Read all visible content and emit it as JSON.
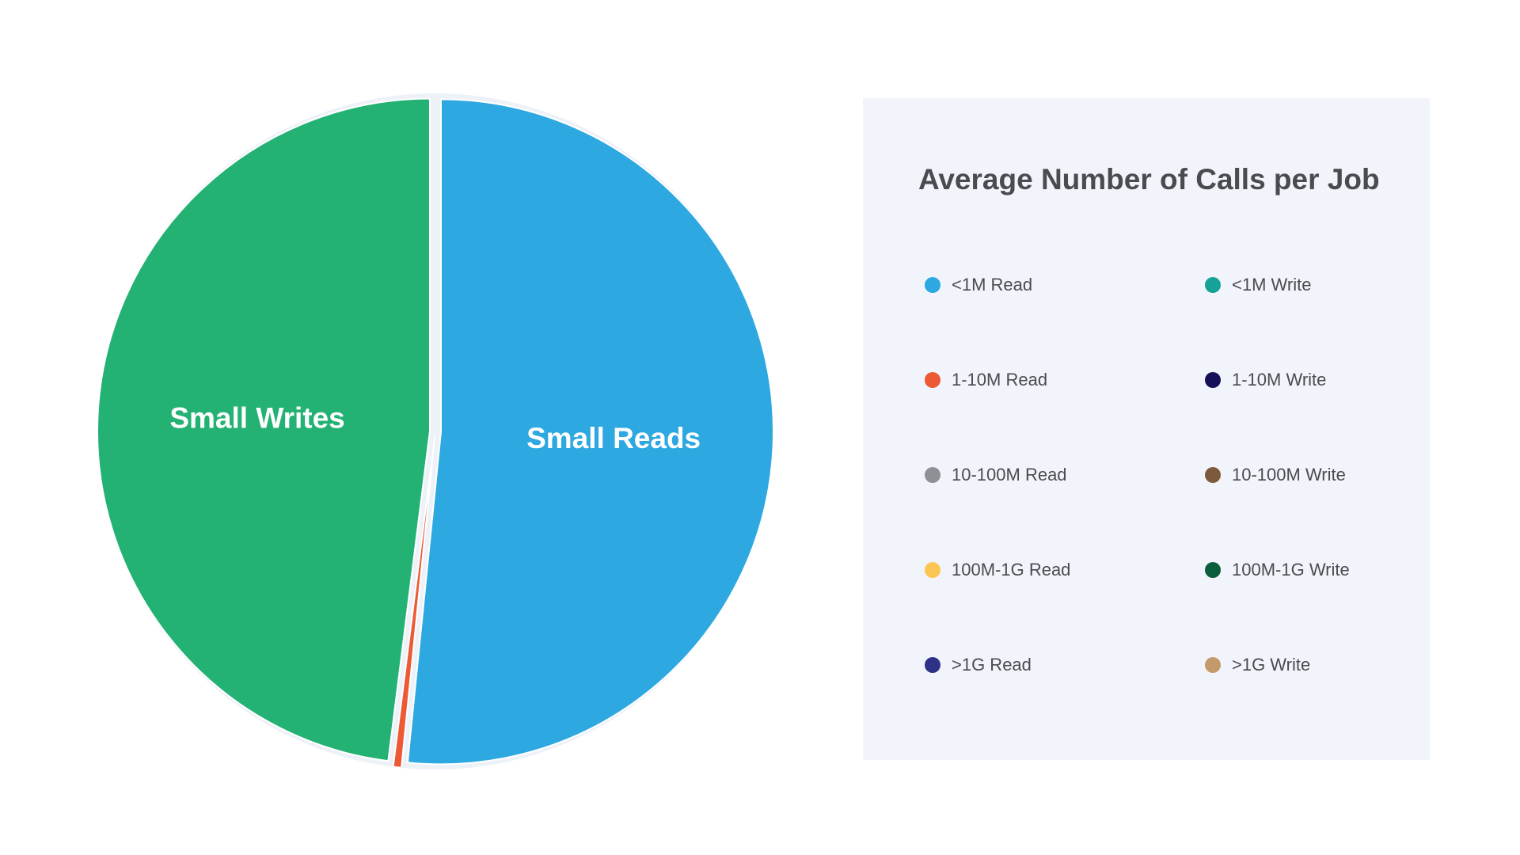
{
  "chart_data": {
    "type": "pie",
    "title": "Average Number of Calls per Job",
    "slices": [
      {
        "name": "<1M Read",
        "value": 51.6,
        "color": "#2da8e0",
        "label": "Small Reads"
      },
      {
        "name": "1-10M Read",
        "value": 0.4,
        "color": "#ec5a35",
        "label": ""
      },
      {
        "name": "10-100M Read",
        "value": 0,
        "color": "#8e9096",
        "label": ""
      },
      {
        "name": "100M-1G Read",
        "value": 0,
        "color": "#fcc554",
        "label": ""
      },
      {
        "name": ">1G Read",
        "value": 0,
        "color": "#2e3287",
        "label": ""
      },
      {
        "name": "<1M Write",
        "value": 48.0,
        "color": "#23b273",
        "label": "Small Writes"
      },
      {
        "name": "1-10M Write",
        "value": 0,
        "color": "#15105a",
        "label": ""
      },
      {
        "name": "10-100M Write",
        "value": 0,
        "color": "#7d5a3c",
        "label": ""
      },
      {
        "name": "100M-1G Write",
        "value": 0,
        "color": "#0b5e3b",
        "label": ""
      },
      {
        "name": ">1G Write",
        "value": 0,
        "color": "#c49a6c",
        "label": ""
      }
    ],
    "legend_position": "right",
    "legend": [
      {
        "label": "<1M Read",
        "color": "#2da8e0"
      },
      {
        "label": "<1M Write",
        "color": "#16a296"
      },
      {
        "label": "1-10M Read",
        "color": "#ec5a35"
      },
      {
        "label": "1-10M Write",
        "color": "#15105a"
      },
      {
        "label": "10-100M Read",
        "color": "#8e9096"
      },
      {
        "label": "10-100M Write",
        "color": "#7d5a3c"
      },
      {
        "label": "100M-1G Read",
        "color": "#fcc554"
      },
      {
        "label": "100M-1G Write",
        "color": "#0b5e3b"
      },
      {
        "label": ">1G Read",
        "color": "#2e3287"
      },
      {
        "label": ">1G Write",
        "color": "#c49a6c"
      }
    ],
    "background_color": "#ffffff",
    "panel_color": "#f1f5fb",
    "outline_color": "#edf1f8"
  }
}
